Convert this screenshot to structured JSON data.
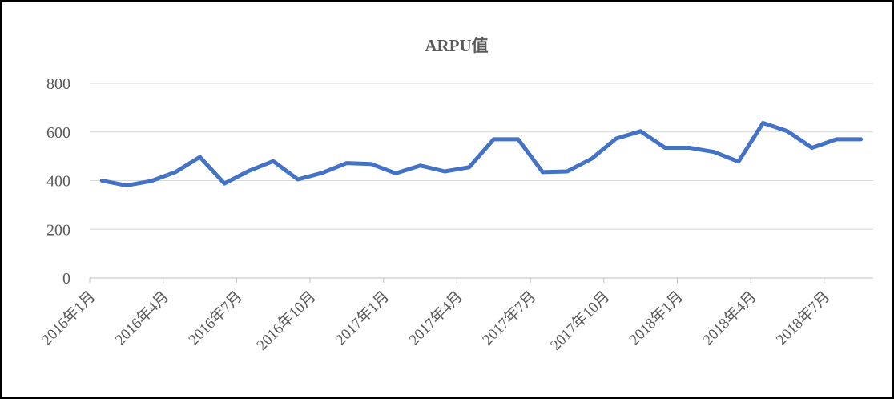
{
  "chart_data": {
    "type": "line",
    "title": "ARPU值",
    "categories": [
      "2016年1月",
      null,
      null,
      "2016年4月",
      null,
      null,
      "2016年7月",
      null,
      null,
      "2016年10月",
      null,
      null,
      "2017年1月",
      null,
      null,
      "2017年4月",
      null,
      null,
      "2017年7月",
      null,
      null,
      "2017年10月",
      null,
      null,
      "2018年1月",
      null,
      null,
      "2018年4月",
      null,
      null,
      "2018年7月",
      null
    ],
    "series": [
      {
        "name": "ARPU值",
        "color": "#4472c4",
        "values": [
          400,
          380,
          398,
          435,
          497,
          388,
          440,
          480,
          405,
          432,
          472,
          468,
          430,
          462,
          438,
          455,
          570,
          570,
          435,
          438,
          490,
          573,
          603,
          535,
          535,
          518,
          478,
          637,
          603,
          535,
          570,
          570
        ]
      }
    ],
    "ylim": [
      0,
      800
    ],
    "yticks": [
      0,
      200,
      400,
      600,
      800
    ],
    "grid": true
  }
}
